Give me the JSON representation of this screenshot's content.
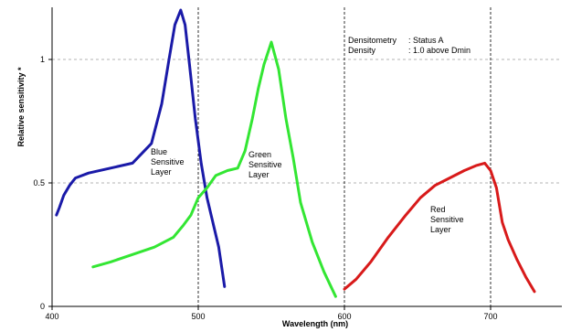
{
  "chart_data": {
    "type": "line",
    "title": "",
    "xlabel": "Wavelength (nm)",
    "ylabel": "Relative sensitivity *",
    "xlim": [
      400,
      750
    ],
    "ylim": [
      0,
      1.2
    ],
    "x_ticks": [
      400,
      500,
      600,
      700
    ],
    "y_ticks": [
      0,
      0.5,
      1
    ],
    "x_tick_labels": [
      "400",
      "500",
      "600",
      "700"
    ],
    "y_tick_labels": [
      "0",
      "0.5",
      "1"
    ],
    "grid": true,
    "colors": {
      "blue": "#1a1aa8",
      "green": "#33e633",
      "red": "#d81a1a"
    },
    "series": [
      {
        "label_lines": [
          "Blue",
          "Sensitive",
          "Layer"
        ],
        "color": "blue",
        "x": [
          403,
          405,
          408,
          412,
          416,
          425,
          440,
          455,
          468,
          475,
          480,
          484,
          488,
          491,
          494,
          498,
          502,
          506,
          510,
          514,
          518
        ],
        "y": [
          0.37,
          0.4,
          0.45,
          0.49,
          0.52,
          0.54,
          0.56,
          0.58,
          0.66,
          0.82,
          1.0,
          1.14,
          1.2,
          1.14,
          0.98,
          0.76,
          0.58,
          0.44,
          0.34,
          0.24,
          0.08
        ]
      },
      {
        "label_lines": [
          "Green",
          "Sensitive",
          "Layer"
        ],
        "color": "green",
        "x": [
          428,
          440,
          455,
          470,
          483,
          490,
          495,
          500,
          506,
          512,
          520,
          527,
          532,
          537,
          541,
          545,
          550,
          555,
          560,
          565,
          570,
          578,
          586,
          594
        ],
        "y": [
          0.16,
          0.18,
          0.21,
          0.24,
          0.28,
          0.33,
          0.37,
          0.44,
          0.48,
          0.53,
          0.55,
          0.56,
          0.63,
          0.76,
          0.88,
          0.98,
          1.07,
          0.96,
          0.76,
          0.6,
          0.42,
          0.26,
          0.14,
          0.04
        ]
      },
      {
        "label_lines": [
          "Red",
          "Sensitive",
          "Layer"
        ],
        "color": "red",
        "x": [
          600,
          608,
          618,
          630,
          642,
          652,
          662,
          672,
          682,
          690,
          696,
          700,
          704,
          708,
          712,
          718,
          724,
          730
        ],
        "y": [
          0.07,
          0.11,
          0.18,
          0.28,
          0.37,
          0.44,
          0.49,
          0.52,
          0.55,
          0.57,
          0.58,
          0.55,
          0.48,
          0.34,
          0.27,
          0.19,
          0.12,
          0.06
        ]
      }
    ],
    "annotation": {
      "row1_key": "Densitometry",
      "row1_value": ": Status A",
      "row2_key": "Density",
      "row2_value": ": 1.0 above  Dmin"
    }
  }
}
